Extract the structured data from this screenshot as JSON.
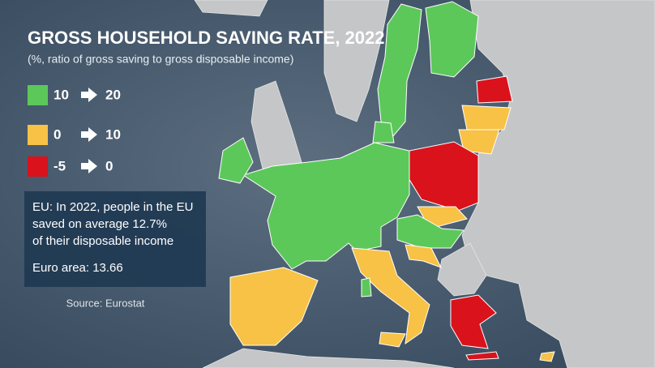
{
  "header": {
    "title": "GROSS HOUSEHOLD SAVING RATE, 2022",
    "subtitle": "(%, ratio of gross saving to gross disposable income)"
  },
  "legend": [
    {
      "from": 10,
      "to": 20,
      "color": "#5cc85a"
    },
    {
      "from": 0,
      "to": 10,
      "color": "#f7c245"
    },
    {
      "from": -5,
      "to": 0,
      "color": "#d9121b"
    }
  ],
  "info": {
    "lines": [
      "EU: In 2022, people in the EU",
      "saved on average 12.7%",
      "of their disposable income"
    ],
    "euro_area": "Euro area: 13.66"
  },
  "source": "Source: Eurostat"
}
